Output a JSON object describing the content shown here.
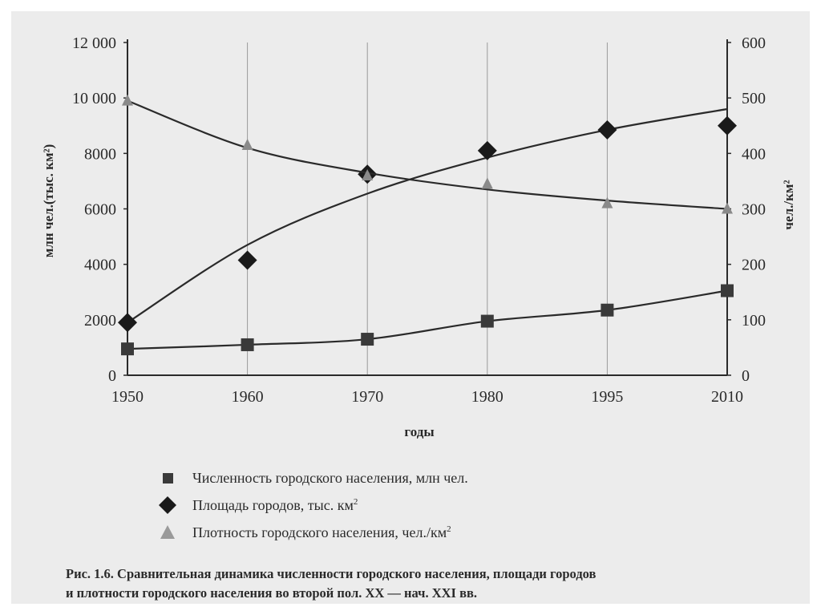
{
  "chart_data": {
    "type": "line",
    "x": [
      "1950",
      "1960",
      "1970",
      "1980",
      "1995",
      "2010"
    ],
    "xlabel": "годы",
    "ylabel_left": "млн чел.(тыс. км²)",
    "ylabel_right": "чел./км²",
    "y_left_ticks": [
      "0",
      "2000",
      "4000",
      "6000",
      "8000",
      "10 000",
      "12 000"
    ],
    "y_right_ticks": [
      "0",
      "100",
      "200",
      "300",
      "400",
      "500",
      "600"
    ],
    "ylim_left": [
      0,
      12000
    ],
    "ylim_right": [
      0,
      600
    ],
    "grid": "vertical",
    "series": [
      {
        "name": "Численность городского населения, млн чел.",
        "marker": "square",
        "axis": "left",
        "values": [
          950,
          1100,
          1300,
          1950,
          2350,
          3050
        ]
      },
      {
        "name": "Площадь городов, тыс. км²",
        "marker": "diamond",
        "axis": "left",
        "values": [
          1900,
          4150,
          7250,
          8100,
          8850,
          9000
        ],
        "trend": [
          1900,
          4700,
          6550,
          7850,
          8850,
          9600
        ]
      },
      {
        "name": "Плотность городского населения, чел./км²",
        "marker": "triangle",
        "axis": "right",
        "values": [
          495,
          415,
          360,
          345,
          310,
          300
        ],
        "trend": [
          495,
          410,
          365,
          335,
          315,
          300
        ]
      }
    ]
  },
  "legend": [
    {
      "label": "Численность городского населения, млн чел.",
      "sup": "",
      "marker": "square"
    },
    {
      "label": "Площадь городов, тыс. км",
      "sup": "2",
      "marker": "diamond"
    },
    {
      "label": "Плотность городского населения, чел./км",
      "sup": "2",
      "marker": "triangle"
    }
  ],
  "caption": {
    "line1": "Рис. 1.6. Сравнительная динамика численности городского населения, площади городов",
    "line2": "и плотности городского населения во второй пол. XX — нач. XXI вв."
  },
  "colors": {
    "ink": "#2a2a2a",
    "background": "#ececec"
  }
}
